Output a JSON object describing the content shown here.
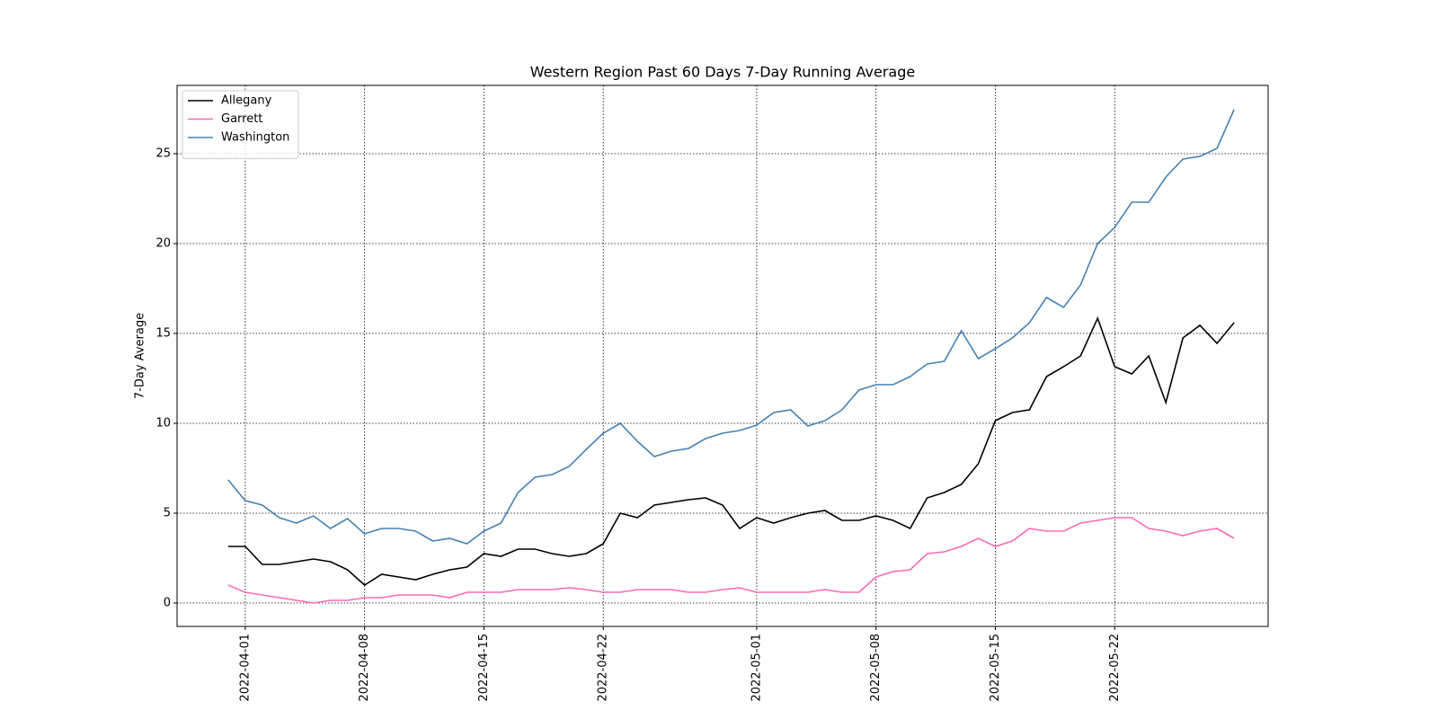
{
  "chart_data": {
    "type": "line",
    "title": "Western Region Past 60 Days 7-Day Running Average",
    "ylabel": "7-Day Average",
    "x": [
      "2022-03-31",
      "2022-04-01",
      "2022-04-02",
      "2022-04-03",
      "2022-04-04",
      "2022-04-05",
      "2022-04-06",
      "2022-04-07",
      "2022-04-08",
      "2022-04-09",
      "2022-04-10",
      "2022-04-11",
      "2022-04-12",
      "2022-04-13",
      "2022-04-14",
      "2022-04-15",
      "2022-04-16",
      "2022-04-17",
      "2022-04-18",
      "2022-04-19",
      "2022-04-20",
      "2022-04-21",
      "2022-04-22",
      "2022-04-23",
      "2022-04-24",
      "2022-04-25",
      "2022-04-26",
      "2022-04-27",
      "2022-04-28",
      "2022-04-29",
      "2022-04-30",
      "2022-05-01",
      "2022-05-02",
      "2022-05-03",
      "2022-05-04",
      "2022-05-05",
      "2022-05-06",
      "2022-05-07",
      "2022-05-08",
      "2022-05-09",
      "2022-05-10",
      "2022-05-11",
      "2022-05-12",
      "2022-05-13",
      "2022-05-14",
      "2022-05-15",
      "2022-05-16",
      "2022-05-17",
      "2022-05-18",
      "2022-05-19",
      "2022-05-20",
      "2022-05-21",
      "2022-05-22",
      "2022-05-23",
      "2022-05-24",
      "2022-05-25",
      "2022-05-26",
      "2022-05-27",
      "2022-05-28",
      "2022-05-29"
    ],
    "series": [
      {
        "name": "Allegany",
        "color": "#000000",
        "values": [
          3.15,
          3.15,
          2.15,
          2.15,
          2.3,
          2.45,
          2.3,
          1.85,
          1.0,
          1.6,
          1.45,
          1.3,
          1.6,
          1.85,
          2.0,
          2.75,
          2.6,
          3.0,
          3.0,
          2.75,
          2.6,
          2.75,
          3.3,
          5.0,
          4.75,
          5.45,
          5.6,
          5.75,
          5.85,
          5.45,
          4.15,
          4.75,
          4.45,
          4.75,
          5.0,
          5.15,
          4.6,
          4.6,
          4.85,
          4.6,
          4.15,
          5.85,
          6.15,
          6.6,
          7.75,
          10.15,
          10.6,
          10.75,
          12.6,
          13.15,
          13.75,
          15.85,
          13.15,
          12.75,
          13.75,
          11.15,
          14.75,
          15.45,
          14.45,
          15.6
        ]
      },
      {
        "name": "Garrett",
        "color": "#ff69b4",
        "values": [
          1.0,
          0.6,
          0.45,
          0.3,
          0.15,
          0.0,
          0.15,
          0.15,
          0.3,
          0.3,
          0.45,
          0.45,
          0.45,
          0.3,
          0.6,
          0.6,
          0.6,
          0.75,
          0.75,
          0.75,
          0.85,
          0.75,
          0.6,
          0.6,
          0.75,
          0.75,
          0.75,
          0.6,
          0.6,
          0.75,
          0.85,
          0.6,
          0.6,
          0.6,
          0.6,
          0.75,
          0.6,
          0.6,
          1.45,
          1.75,
          1.85,
          2.75,
          2.85,
          3.15,
          3.6,
          3.15,
          3.45,
          4.15,
          4.0,
          4.0,
          4.45,
          4.6,
          4.75,
          4.75,
          4.15,
          4.0,
          3.75,
          4.0,
          4.15,
          3.6
        ]
      },
      {
        "name": "Washington",
        "color": "#4682b4",
        "values": [
          6.85,
          5.7,
          5.45,
          4.75,
          4.45,
          4.85,
          4.15,
          4.7,
          3.85,
          4.15,
          4.15,
          4.0,
          3.45,
          3.6,
          3.3,
          4.0,
          4.45,
          6.15,
          7.0,
          7.15,
          7.6,
          8.55,
          9.45,
          10.0,
          9.0,
          8.15,
          8.45,
          8.6,
          9.15,
          9.45,
          9.6,
          9.9,
          10.6,
          10.75,
          9.85,
          10.15,
          10.75,
          11.85,
          12.15,
          12.15,
          12.6,
          13.3,
          13.45,
          15.15,
          13.6,
          14.15,
          14.75,
          15.6,
          17.0,
          16.45,
          17.7,
          20.0,
          20.9,
          22.3,
          22.3,
          23.7,
          24.7,
          24.85,
          25.3,
          27.45
        ]
      }
    ],
    "xlim": [
      "2022-03-28",
      "2022-05-31"
    ],
    "xticks": [
      "2022-04-01",
      "2022-04-08",
      "2022-04-15",
      "2022-04-22",
      "2022-05-01",
      "2022-05-08",
      "2022-05-15",
      "2022-05-22"
    ],
    "ylim": [
      -1.3,
      28.8
    ],
    "yticks": [
      0,
      5,
      10,
      15,
      20,
      25
    ],
    "grid": true,
    "legend": "upper left"
  }
}
